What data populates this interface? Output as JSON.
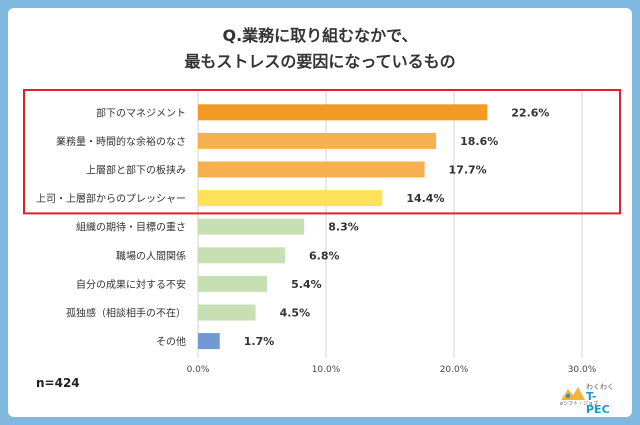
{
  "title_line1": "Q.業務に取り組むなかで、",
  "title_line2": "最もストレスの要因になっているもの",
  "sample_note": "n=424",
  "logo": {
    "top": "わくわく",
    "main": "T-PEC",
    "sub": "eシフト・ジョブ"
  },
  "colors": {
    "highlight_box": "#e0202a",
    "grid": "#d0d0d0"
  },
  "chart_data": {
    "type": "bar",
    "orientation": "horizontal",
    "title": "Q.業務に取り組むなかで、最もストレスの要因になっているもの",
    "categories": [
      "部下のマネジメント",
      "業務量・時間的な余裕のなさ",
      "上層部と部下の板挟み",
      "上司・上層部からのプレッシャー",
      "組織の期待・目標の重さ",
      "職場の人間関係",
      "自分の成果に対する不安",
      "孤独感（相談相手の不在）",
      "その他"
    ],
    "values": [
      22.6,
      18.6,
      17.7,
      14.4,
      8.3,
      6.8,
      5.4,
      4.5,
      1.7
    ],
    "value_labels": [
      "22.6%",
      "18.6%",
      "17.7%",
      "14.4%",
      "8.3%",
      "6.8%",
      "5.4%",
      "4.5%",
      "1.7%"
    ],
    "bar_colors": [
      "#f29a22",
      "#f7b050",
      "#f7b050",
      "#fde25a",
      "#c6e0b4",
      "#c6e0b4",
      "#c6e0b4",
      "#c6e0b4",
      "#7199d2"
    ],
    "xlim": [
      0,
      30
    ],
    "ticks": [
      "0.0%",
      "10.0%",
      "20.0%",
      "30.0%"
    ],
    "tick_values": [
      0,
      10,
      20,
      30
    ],
    "highlighted_categories": 4,
    "grid": true
  }
}
